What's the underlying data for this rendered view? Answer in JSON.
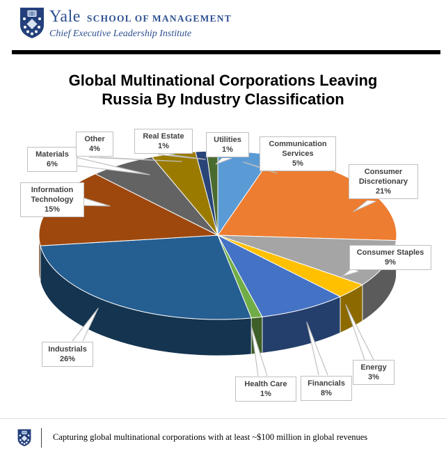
{
  "header": {
    "wordmark": "Yale",
    "wordmark_caps": "SCHOOL OF MANAGEMENT",
    "subtitle": "Chief Executive Leadership Institute"
  },
  "chart_data": {
    "type": "pie",
    "style": "3d-perspective",
    "title": "Global Multinational Corporations Leaving Russia By Industry Classification",
    "title_lines": [
      "Global Multinational Corporations Leaving",
      "Russia By Industry Classification"
    ],
    "unit": "%",
    "legend": "none",
    "labels": "callouts-with-percent",
    "start_angle_deg": 0,
    "direction": "clockwise",
    "slices": [
      {
        "label": "Communication Services",
        "value": 5,
        "color": "#5B9BD5"
      },
      {
        "label": "Consumer Discretionary",
        "value": 21,
        "color": "#ED7D31"
      },
      {
        "label": "Consumer Staples",
        "value": 9,
        "color": "#A5A5A5"
      },
      {
        "label": "Energy",
        "value": 3,
        "color": "#FFC000"
      },
      {
        "label": "Financials",
        "value": 8,
        "color": "#4472C4"
      },
      {
        "label": "Health Care",
        "value": 1,
        "color": "#70AD47"
      },
      {
        "label": "Industrials",
        "value": 26,
        "color": "#255E91"
      },
      {
        "label": "Information Technology",
        "value": 15,
        "color": "#9E480E"
      },
      {
        "label": "Materials",
        "value": 6,
        "color": "#636363"
      },
      {
        "label": "Other",
        "value": 4,
        "color": "#9A7B00"
      },
      {
        "label": "Real Estate",
        "value": 1,
        "color": "#2A4478"
      },
      {
        "label": "Utilities",
        "value": 1,
        "color": "#4A6B2F"
      }
    ]
  },
  "footer": {
    "note": "Capturing global multinational corporations with at least ~$100 million in global revenues"
  }
}
